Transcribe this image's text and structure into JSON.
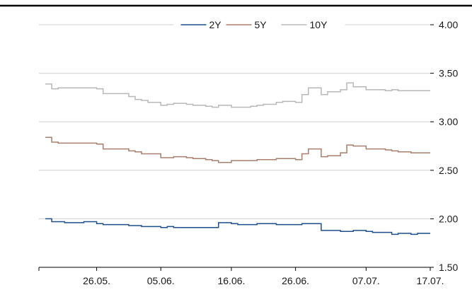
{
  "chart_data": {
    "type": "line",
    "title": "",
    "xlabel": "",
    "ylabel": "",
    "ylim": [
      1.5,
      4.0
    ],
    "yticks": [
      "4.00",
      "3.50",
      "3.00",
      "2.50",
      "2.00",
      "1.50"
    ],
    "yaxis_side": "right",
    "grid": "horizontal",
    "legend_position": "top-center",
    "x_tick_labels": [
      "26.05.",
      "05.06.",
      "16.06.",
      "26.06.",
      "07.07.",
      "17.07."
    ],
    "x_dates": [
      "18.05.",
      "19.05.",
      "20.05.",
      "21.05.",
      "24.05.",
      "26.05.",
      "27.05.",
      "28.05.",
      "31.05.",
      "01.06.",
      "02.06.",
      "03.06.",
      "05.06.",
      "06.06.",
      "07.06.",
      "09.06.",
      "10.06.",
      "12.06.",
      "13.06.",
      "14.06.",
      "16.06.",
      "17.06.",
      "19.06.",
      "20.06.",
      "21.06.",
      "23.06.",
      "24.06.",
      "26.06.",
      "27.06.",
      "28.06.",
      "30.06.",
      "01.07.",
      "03.07.",
      "04.07.",
      "05.07.",
      "07.07.",
      "08.07.",
      "10.07.",
      "11.07.",
      "12.07.",
      "14.07.",
      "15.07.",
      "17.07."
    ],
    "series": [
      {
        "name": "2Y",
        "color": "#1f4e8c",
        "values": [
          2.0,
          1.97,
          1.97,
          1.96,
          1.97,
          1.95,
          1.94,
          1.94,
          1.93,
          1.93,
          1.92,
          1.92,
          1.91,
          1.92,
          1.91,
          1.91,
          1.91,
          1.91,
          1.91,
          1.96,
          1.95,
          1.94,
          1.94,
          1.95,
          1.95,
          1.94,
          1.94,
          1.94,
          1.95,
          1.95,
          1.88,
          1.88,
          1.87,
          1.87,
          1.88,
          1.87,
          1.86,
          1.86,
          1.84,
          1.85,
          1.84,
          1.85,
          1.85
        ]
      },
      {
        "name": "5Y",
        "color": "#a97e6c",
        "values": [
          2.84,
          2.79,
          2.78,
          2.78,
          2.78,
          2.77,
          2.72,
          2.72,
          2.7,
          2.69,
          2.67,
          2.67,
          2.63,
          2.63,
          2.64,
          2.63,
          2.62,
          2.61,
          2.6,
          2.58,
          2.6,
          2.6,
          2.6,
          2.61,
          2.61,
          2.62,
          2.62,
          2.61,
          2.67,
          2.72,
          2.64,
          2.65,
          2.68,
          2.76,
          2.75,
          2.72,
          2.72,
          2.71,
          2.7,
          2.69,
          2.68,
          2.68,
          2.68
        ]
      },
      {
        "name": "10Y",
        "color": "#b8b8b8",
        "values": [
          3.39,
          3.34,
          3.35,
          3.35,
          3.35,
          3.34,
          3.29,
          3.29,
          3.26,
          3.23,
          3.22,
          3.2,
          3.17,
          3.18,
          3.19,
          3.18,
          3.17,
          3.16,
          3.15,
          3.17,
          3.15,
          3.15,
          3.16,
          3.17,
          3.18,
          3.2,
          3.21,
          3.2,
          3.28,
          3.35,
          3.28,
          3.31,
          3.33,
          3.4,
          3.36,
          3.33,
          3.33,
          3.32,
          3.33,
          3.32,
          3.32,
          3.32,
          3.32
        ]
      }
    ]
  }
}
